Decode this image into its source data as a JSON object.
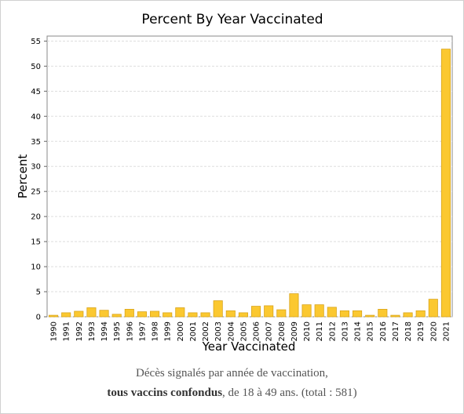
{
  "chart_data": {
    "type": "bar",
    "title": "Percent By Year Vaccinated",
    "x_label": "Year Vaccinated",
    "y_label": "Percent",
    "categories": [
      "1990",
      "1991",
      "1992",
      "1993",
      "1994",
      "1995",
      "1996",
      "1997",
      "1998",
      "1999",
      "2000",
      "2001",
      "2002",
      "2003",
      "2004",
      "2005",
      "2006",
      "2007",
      "2008",
      "2009",
      "2010",
      "2011",
      "2012",
      "2013",
      "2014",
      "2015",
      "2016",
      "2017",
      "2018",
      "2019",
      "2020",
      "2021"
    ],
    "values": [
      0.3,
      0.8,
      1.1,
      1.8,
      1.3,
      0.5,
      1.5,
      1.0,
      1.1,
      0.8,
      1.8,
      0.8,
      0.8,
      3.2,
      1.2,
      0.8,
      2.1,
      2.2,
      1.4,
      4.6,
      2.4,
      2.4,
      1.9,
      1.2,
      1.2,
      0.3,
      1.5,
      0.3,
      0.8,
      1.2,
      3.5,
      53.4
    ],
    "color": "#fbc830",
    "ylim": [
      0,
      56
    ],
    "yticks": [
      0,
      5,
      10,
      15,
      20,
      25,
      30,
      35,
      40,
      45,
      50,
      55
    ],
    "grid": true
  },
  "caption": {
    "line1": "Décès signalés par année de vaccination,",
    "bold": "tous vaccins confondus",
    "rest": ", de 18 à 49 ans. (total : 581)"
  }
}
